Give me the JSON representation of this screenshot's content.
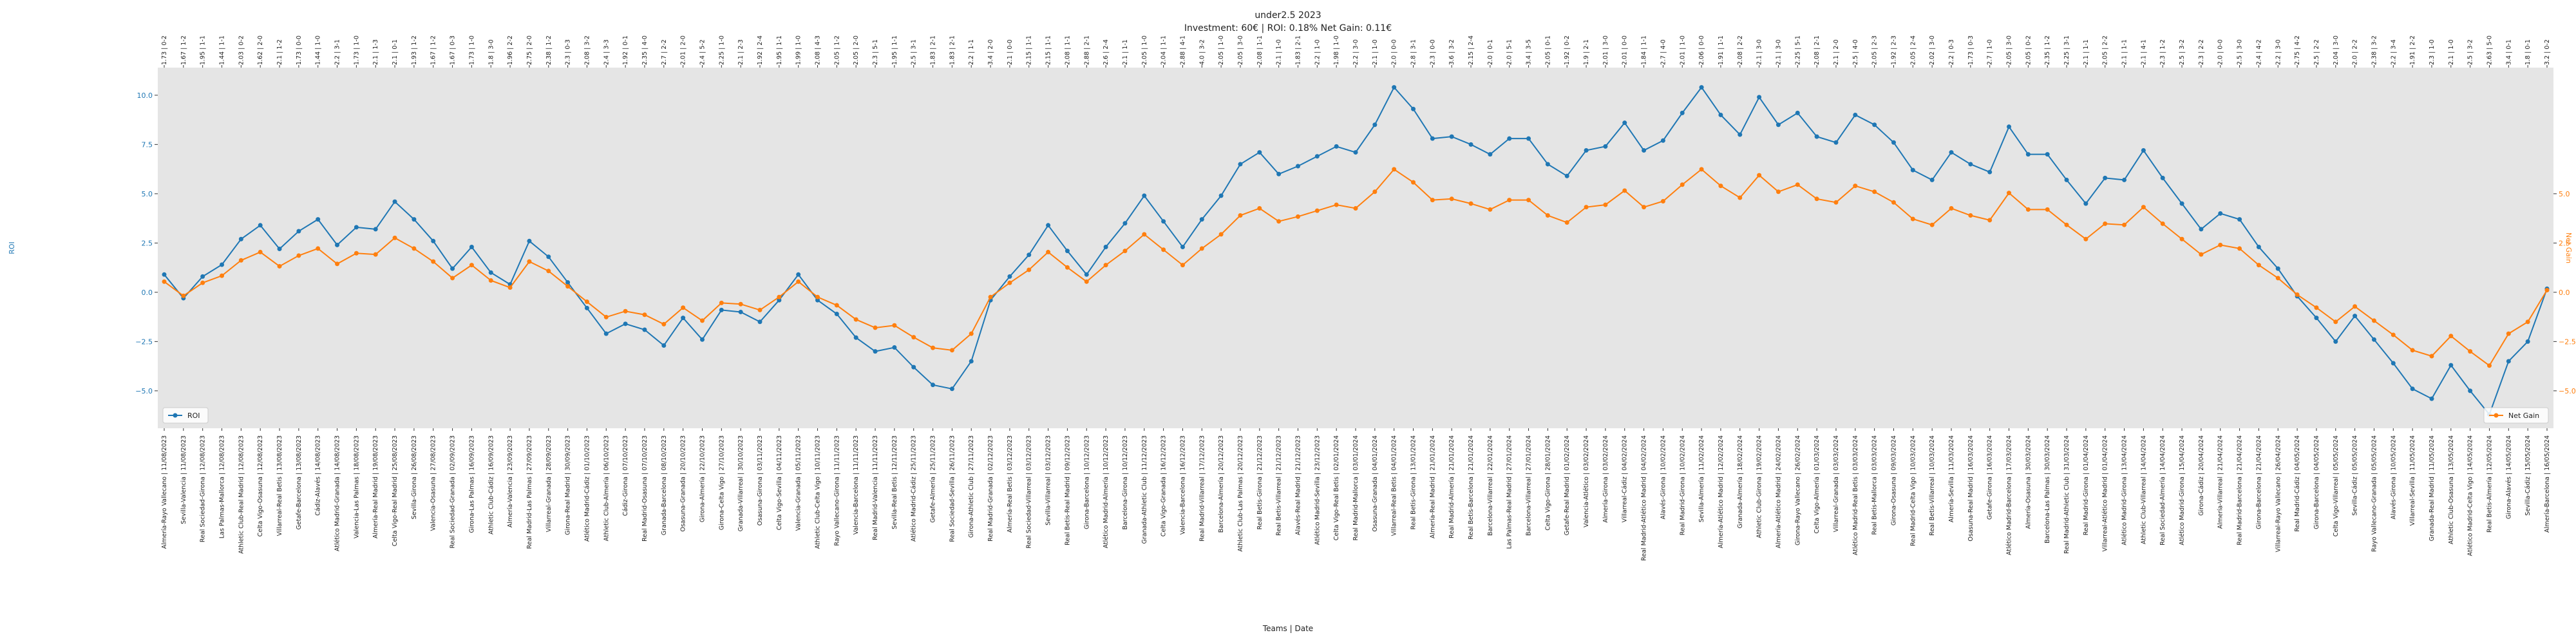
{
  "chart_data": {
    "type": "line",
    "title": "under2.5 2023",
    "subtitle": "Investment: 60€ | ROI: 0.18% Net Gain: 0.11€",
    "x_label": "Teams | Date",
    "y_label": "ROI",
    "y2_label": "Net Gain",
    "ylim": [
      -6.9,
      11.4
    ],
    "yticks": [
      {
        "value": -5,
        "label": "−5.0"
      },
      {
        "value": -2.5,
        "label": "−2.5"
      },
      {
        "value": 0,
        "label": "0.0"
      },
      {
        "value": 2.5,
        "label": "2.5"
      },
      {
        "value": 5,
        "label": "5.0"
      },
      {
        "value": 7.5,
        "label": "7.5"
      },
      {
        "value": 10,
        "label": "10.0"
      }
    ],
    "y2lim": [
      -6.9,
      11.4
    ],
    "y2ticks": [
      {
        "value": -5,
        "label": "−5.0"
      },
      {
        "value": -2.5,
        "label": "−2.5"
      },
      {
        "value": 0,
        "label": "0.0"
      },
      {
        "value": 2.5,
        "label": "2.5"
      },
      {
        "value": 5,
        "label": "5.0"
      }
    ],
    "background": "#e5e5e5",
    "categories": [
      "Almería-Rayo Vallecano | 11/08/2023",
      "Sevilla-Valencia | 11/08/2023",
      "Real Sociedad-Girona | 12/08/2023",
      "Las Palmas-Mallorca | 12/08/2023",
      "Athletic Club-Real Madrid | 12/08/2023",
      "Celta Vigo-Osasuna | 12/08/2023",
      "Villarreal-Real Betis | 13/08/2023",
      "Getafe-Barcelona | 13/08/2023",
      "Cádiz-Alavés | 14/08/2023",
      "Atlético Madrid-Granada | 14/08/2023",
      "Valencia-Las Palmas | 18/08/2023",
      "Almería-Real Madrid | 19/08/2023",
      "Celta Vigo-Real Madrid | 25/08/2023",
      "Sevilla-Girona | 26/08/2023",
      "Valencia-Osasuna | 27/08/2023",
      "Real Sociedad-Granada | 02/09/2023",
      "Girona-Las Palmas | 16/09/2023",
      "Athletic Club-Cádiz | 16/09/2023",
      "Almería-Valencia | 23/09/2023",
      "Real Madrid-Las Palmas | 27/09/2023",
      "Villarreal-Granada | 28/09/2023",
      "Girona-Real Madrid | 30/09/2023",
      "Atlético Madrid-Cádiz | 01/10/2023",
      "Athletic Club-Almería | 06/10/2023",
      "Cádiz-Girona | 07/10/2023",
      "Real Madrid-Osasuna | 07/10/2023",
      "Granada-Barcelona | 08/10/2023",
      "Osasuna-Granada | 20/10/2023",
      "Girona-Almería | 22/10/2023",
      "Girona-Celta Vigo | 27/10/2023",
      "Granada-Villarreal | 30/10/2023",
      "Osasuna-Girona | 03/11/2023",
      "Celta Vigo-Sevilla | 04/11/2023",
      "Valencia-Granada | 05/11/2023",
      "Athletic Club-Celta Vigo | 10/11/2023",
      "Rayo Vallecano-Girona | 11/11/2023",
      "Valencia-Barcelona | 11/11/2023",
      "Real Madrid-Valencia | 11/11/2023",
      "Sevilla-Real Betis | 12/11/2023",
      "Atlético Madrid-Cádiz | 25/11/2023",
      "Getafe-Almería | 25/11/2023",
      "Real Sociedad-Sevilla | 26/11/2023",
      "Girona-Athletic Club | 27/11/2023",
      "Real Madrid-Granada | 02/12/2023",
      "Almería-Real Betis | 03/12/2023",
      "Real Sociedad-Villarreal | 03/12/2023",
      "Sevilla-Villarreal | 03/12/2023",
      "Real Betis-Real Madrid | 09/12/2023",
      "Girona-Barcelona | 10/12/2023",
      "Atlético Madrid-Almería | 10/12/2023",
      "Barcelona-Girona | 10/12/2023",
      "Granada-Athletic Club | 11/12/2023",
      "Celta Vigo-Granada | 16/12/2023",
      "Valencia-Barcelona | 16/12/2023",
      "Real Madrid-Villarreal | 17/12/2023",
      "Barcelona-Almería | 20/12/2023",
      "Athletic Club-Las Palmas | 20/12/2023",
      "Real Betis-Girona | 21/12/2023",
      "Real Betis-Villarreal | 21/12/2023",
      "Alavés-Real Madrid | 21/12/2023",
      "Atlético Madrid-Sevilla | 23/12/2023",
      "Celta Vigo-Real Betis | 02/01/2024",
      "Real Madrid-Mallorca | 03/01/2024",
      "Osasuna-Granada | 04/01/2024",
      "Villarreal-Real Betis | 04/01/2024",
      "Real Betis-Girona | 13/01/2024",
      "Almería-Real Madrid | 21/01/2024",
      "Real Madrid-Almería | 21/01/2024",
      "Real Betis-Barcelona | 21/01/2024",
      "Barcelona-Villarreal | 22/01/2024",
      "Las Palmas-Real Madrid | 27/01/2024",
      "Barcelona-Villarreal | 27/01/2024",
      "Celta Vigo-Girona | 28/01/2024",
      "Getafe-Real Madrid | 01/02/2024",
      "Valencia-Atlético | 03/02/2024",
      "Almería-Girona | 03/02/2024",
      "Villarreal-Cádiz | 04/02/2024",
      "Real Madrid-Atlético Madrid | 04/02/2024",
      "Alavés-Girona | 10/02/2024",
      "Real Madrid-Girona | 10/02/2024",
      "Sevilla-Almería | 11/02/2024",
      "Almería-Atlético Madrid | 12/02/2024",
      "Granada-Almería | 18/02/2024",
      "Athletic Club-Girona | 19/02/2024",
      "Almería-Atlético Madrid | 24/02/2024",
      "Girona-Rayo Vallecano | 26/02/2024",
      "Celta Vigo-Almería | 01/03/2024",
      "Villarreal-Granada | 03/03/2024",
      "Atlético Madrid-Real Betis | 03/03/2024",
      "Real Betis-Mallorca | 03/03/2024",
      "Girona-Osasuna | 09/03/2024",
      "Real Madrid-Celta Vigo | 10/03/2024",
      "Real Betis-Villarreal | 10/03/2024",
      "Almería-Sevilla | 11/03/2024",
      "Osasuna-Real Madrid | 16/03/2024",
      "Getafe-Girona | 16/03/2024",
      "Atlético Madrid-Barcelona | 17/03/2024",
      "Almería-Osasuna | 30/03/2024",
      "Barcelona-Las Palmas | 30/03/2024",
      "Real Madrid-Athletic Club | 31/03/2024",
      "Real Madrid-Girona | 01/04/2024",
      "Villarreal-Atlético Madrid | 01/04/2024",
      "Atlético Madrid-Girona | 13/04/2024",
      "Athletic Club-Villarreal | 14/04/2024",
      "Real Sociedad-Almería | 14/04/2024",
      "Atlético Madrid-Girona | 15/04/2024",
      "Girona-Cádiz | 20/04/2024",
      "Almería-Villarreal | 21/04/2024",
      "Real Madrid-Barcelona | 21/04/2024",
      "Girona-Barcelona | 21/04/2024",
      "Villarreal-Rayo Vallecano | 26/04/2024",
      "Real Madrid-Cádiz | 04/05/2024",
      "Girona-Barcelona | 04/05/2024",
      "Celta Vigo-Villarreal | 05/05/2024",
      "Sevilla-Cádiz | 05/05/2024",
      "Rayo Vallecano-Granada | 05/05/2024",
      "Alavés-Girona | 10/05/2024",
      "Villarreal-Sevilla | 11/05/2024",
      "Granada-Real Madrid | 11/05/2024",
      "Athletic Club-Osasuna | 13/05/2024",
      "Atlético Madrid-Celta Vigo | 14/05/2024",
      "Real Betis-Almería | 12/05/2024",
      "Girona-Alavés | 14/05/2024",
      "Sevilla-Cádiz | 15/05/2024",
      "Almería-Barcelona | 16/05/2024"
    ],
    "top_labels": [
      "1.73 | 0-2",
      "1.67 | 1-2",
      "1.95 | 1-1",
      "1.44 | 1-1",
      "2.03 | 0-2",
      "1.62 | 2-0",
      "2.1 | 1-2",
      "1.73 | 0-0",
      "1.44 | 1-0",
      "2.2 | 3-1",
      "1.73 | 1-0",
      "2.1 | 1-3",
      "2.1 | 0-1",
      "1.93 | 1-2",
      "1.67 | 1-2",
      "1.67 | 0-3",
      "1.73 | 1-0",
      "1.8 | 3-0",
      "1.96 | 2-2",
      "2.75 | 2-0",
      "2.38 | 1-2",
      "2.3 | 0-3",
      "2.08 | 3-2",
      "2.4 | 3-3",
      "1.92 | 0-1",
      "2.35 | 4-0",
      "2.7 | 2-2",
      "2.01 | 2-0",
      "2.4 | 5-2",
      "2.25 | 1-0",
      "2.1 | 2-3",
      "1.92 | 2-4",
      "1.95 | 1-1",
      "1.99 | 1-0",
      "2.08 | 4-3",
      "2.05 | 1-2",
      "2.05 | 2-0",
      "2.3 | 5-1",
      "1.95 | 1-1",
      "2.5 | 3-1",
      "1.83 | 2-1",
      "1.83 | 2-1",
      "2.2 | 1-1",
      "3.4 | 2-0",
      "2.1 | 0-0",
      "2.15 | 1-1",
      "2.15 | 1-1",
      "2.08 | 1-1",
      "2.88 | 2-1",
      "2.6 | 2-4",
      "2.1 | 1-1",
      "2.05 | 1-0",
      "2.04 | 1-1",
      "2.88 | 4-1",
      "4.0 | 3-2",
      "2.05 | 1-0",
      "2.05 | 3-0",
      "2.08 | 1-1",
      "2.1 | 1-0",
      "1.83 | 2-1",
      "2.2 | 1-0",
      "1.98 | 1-0",
      "2.2 | 3-0",
      "2.1 | 1-0",
      "2.0 | 0-0",
      "2.8 | 3-1",
      "2.3 | 0-0",
      "3.6 | 3-2",
      "2.15 | 2-4",
      "2.0 | 0-1",
      "2.0 | 5-1",
      "3.4 | 3-5",
      "2.05 | 0-1",
      "1.92 | 0-2",
      "1.9 | 2-1",
      "2.01 | 3-0",
      "2.01 | 0-0",
      "1.84 | 1-1",
      "2.7 | 4-0",
      "2.01 | 1-0",
      "2.06 | 0-0",
      "1.91 | 1-1",
      "2.08 | 2-2",
      "2.1 | 3-0",
      "2.1 | 3-0",
      "2.25 | 5-1",
      "2.08 | 2-1",
      "2.1 | 2-0",
      "2.5 | 4-0",
      "2.05 | 2-3",
      "1.92 | 2-3",
      "2.05 | 2-4",
      "2.02 | 3-0",
      "2.2 | 0-3",
      "1.73 | 0-3",
      "2.7 | 1-0",
      "2.05 | 3-0",
      "2.05 | 0-2",
      "2.35 | 1-2",
      "2.25 | 3-1",
      "2.1 | 1-1",
      "2.05 | 2-2",
      "2.1 | 1-1",
      "2.1 | 4-1",
      "2.3 | 1-2",
      "2.5 | 3-2",
      "2.3 | 2-2",
      "2.0 | 0-0",
      "2.5 | 3-0",
      "2.4 | 4-2",
      "2.2 | 3-0",
      "2.75 | 4-2",
      "2.5 | 2-2",
      "2.04 | 3-0",
      "2.0 | 2-2",
      "2.38 | 3-2",
      "2.2 | 3-4",
      "1.91 | 2-2",
      "2.3 | 1-0",
      "2.1 | 1-0",
      "2.5 | 3-2",
      "2.63 | 5-0",
      "3.4 | 0-1",
      "1.8 | 0-1",
      "3.2 | 0-2"
    ],
    "series": [
      {
        "name": "ROI",
        "color": "#1f77b4",
        "axis": "y",
        "legend": "lower left",
        "values": [
          0.9,
          -0.3,
          0.8,
          1.4,
          2.7,
          3.4,
          2.2,
          3.1,
          3.7,
          2.4,
          3.3,
          3.2,
          4.6,
          3.7,
          2.6,
          1.2,
          2.3,
          1.0,
          0.4,
          2.6,
          1.8,
          0.5,
          -0.8,
          -2.1,
          -1.6,
          -1.9,
          -2.7,
          -1.3,
          -2.4,
          -0.9,
          -1.0,
          -1.5,
          -0.4,
          0.9,
          -0.4,
          -1.1,
          -2.3,
          -3.0,
          -2.8,
          -3.8,
          -4.7,
          -4.9,
          -3.5,
          -0.4,
          0.8,
          1.9,
          3.4,
          2.1,
          0.9,
          2.3,
          3.5,
          4.9,
          3.6,
          2.3,
          3.7,
          4.9,
          6.5,
          7.1,
          6.0,
          6.4,
          6.9,
          7.4,
          7.1,
          8.5,
          10.4,
          9.3,
          7.8,
          7.9,
          7.5,
          7.0,
          7.8,
          7.8,
          6.5,
          5.9,
          7.2,
          7.4,
          8.6,
          7.2,
          7.7,
          9.1,
          10.4,
          9.0,
          8.0,
          9.9,
          8.5,
          9.1,
          7.9,
          7.6,
          9.0,
          8.5,
          7.6,
          6.2,
          5.7,
          7.1,
          6.5,
          6.1,
          8.4,
          7.0,
          7.0,
          5.7,
          4.5,
          5.8,
          5.7,
          7.2,
          5.8,
          4.5,
          3.2,
          4.0,
          3.7,
          2.3,
          1.2,
          -0.2,
          -1.3,
          -2.5,
          -1.2,
          -2.4,
          -3.6,
          -4.9,
          -5.4,
          -3.7,
          -5.0,
          -6.2,
          -3.5,
          -2.5,
          0.18
        ]
      },
      {
        "name": "Net Gain",
        "color": "#ff7f0e",
        "axis": "y2",
        "legend": "lower right",
        "values": [
          0.54,
          -0.18,
          0.48,
          0.84,
          1.62,
          2.04,
          1.32,
          1.86,
          2.22,
          1.44,
          1.98,
          1.92,
          2.76,
          2.22,
          1.56,
          0.72,
          1.38,
          0.6,
          0.24,
          1.56,
          1.08,
          0.3,
          -0.48,
          -1.26,
          -0.96,
          -1.14,
          -1.62,
          -0.78,
          -1.44,
          -0.54,
          -0.6,
          -0.9,
          -0.24,
          0.54,
          -0.24,
          -0.66,
          -1.38,
          -1.8,
          -1.68,
          -2.28,
          -2.82,
          -2.94,
          -2.1,
          -0.24,
          0.48,
          1.14,
          2.04,
          1.26,
          0.54,
          1.38,
          2.1,
          2.94,
          2.16,
          1.38,
          2.22,
          2.94,
          3.9,
          4.26,
          3.6,
          3.84,
          4.14,
          4.44,
          4.26,
          5.1,
          6.24,
          5.58,
          4.68,
          4.74,
          4.5,
          4.2,
          4.68,
          4.68,
          3.9,
          3.54,
          4.32,
          4.44,
          5.16,
          4.32,
          4.62,
          5.46,
          6.24,
          5.4,
          4.8,
          5.94,
          5.1,
          5.46,
          4.74,
          4.56,
          5.4,
          5.1,
          4.56,
          3.72,
          3.42,
          4.26,
          3.9,
          3.66,
          5.04,
          4.2,
          4.2,
          3.42,
          2.7,
          3.48,
          3.42,
          4.32,
          3.48,
          2.7,
          1.92,
          2.4,
          2.22,
          1.38,
          0.72,
          -0.12,
          -0.78,
          -1.5,
          -0.72,
          -1.44,
          -2.16,
          -2.94,
          -3.24,
          -2.22,
          -3.0,
          -3.72,
          -2.1,
          -1.5,
          0.11
        ]
      }
    ]
  }
}
